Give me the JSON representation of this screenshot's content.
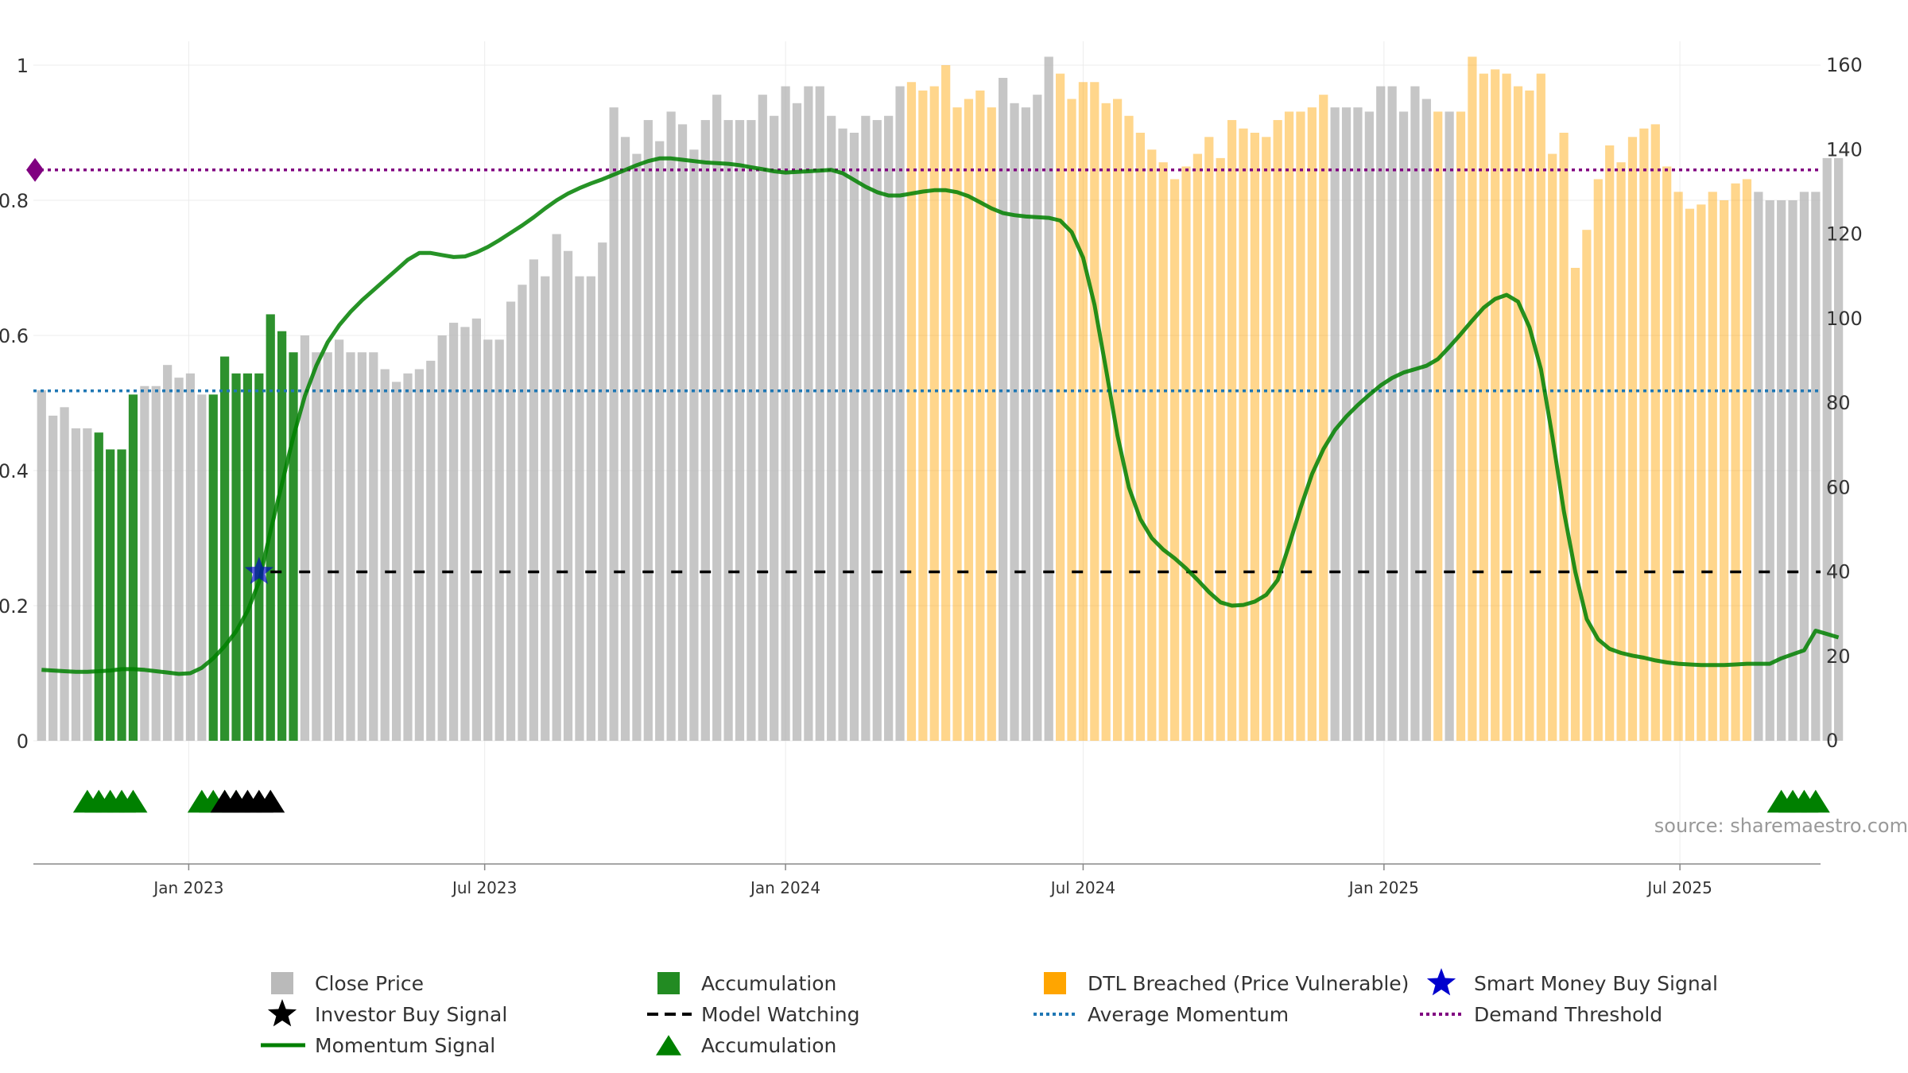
{
  "chart_data": {
    "type": "bar",
    "source_text": "source: sharemaestro.com",
    "left_axis": {
      "ylim": [
        0,
        1
      ],
      "ticks": [
        0,
        0.2,
        0.4,
        0.6,
        0.8,
        1
      ],
      "tick_labels": [
        "0",
        "0.2",
        "0.4",
        "0.6",
        "0.8",
        "1"
      ]
    },
    "right_axis": {
      "ylim": [
        0,
        160
      ],
      "ticks": [
        0,
        20,
        40,
        60,
        80,
        100,
        120,
        140,
        160
      ],
      "tick_labels": [
        "0",
        "20",
        "40",
        "60",
        "80",
        "100",
        "120",
        "140",
        "160"
      ]
    },
    "x_axis": {
      "range": [
        "2022-09-28",
        "2025-09-25"
      ],
      "tick_dates": [
        "2023-01-01",
        "2023-07-01",
        "2024-01-01",
        "2024-07-01",
        "2025-01-01",
        "2025-07-01"
      ],
      "tick_labels": [
        "Jan 2023",
        "Jul 2023",
        "Jan 2024",
        "Jul 2024",
        "Jan 2025",
        "Jul 2025"
      ]
    },
    "grid": true,
    "legend_position": "bottom",
    "colors": {
      "close_price": "#b3b3b3",
      "accumulation": "#228b22",
      "dtl_breached": "#ffa500",
      "momentum": "#008000",
      "model_watching": "#000000",
      "average_momentum": "#1f77b4",
      "demand_threshold": "#800080",
      "smart_money": "#0000cd",
      "investor_buy": "#000000",
      "accumulation_marker": "#008000"
    },
    "bars": {
      "start_date": "2022-10-03",
      "interval_days": 7,
      "values": [
        83,
        77,
        79,
        74,
        74,
        73,
        69,
        69,
        82,
        84,
        84,
        89,
        86,
        87,
        82,
        82,
        91,
        87,
        87,
        87,
        101,
        97,
        92,
        96,
        92,
        92,
        95,
        92,
        92,
        92,
        88,
        85,
        87,
        88,
        90,
        96,
        99,
        98,
        100,
        95,
        95,
        104,
        108,
        114,
        110,
        120,
        116,
        110,
        110,
        118,
        150,
        143,
        139,
        147,
        142,
        149,
        146,
        140,
        147,
        153,
        147,
        147,
        147,
        153,
        148,
        155,
        151,
        155,
        155,
        148,
        145,
        144,
        148,
        147,
        148,
        155,
        156,
        154,
        155,
        160,
        150,
        152,
        154,
        150,
        157,
        151,
        150,
        153,
        162,
        158,
        152,
        156,
        156,
        151,
        152,
        148,
        144,
        140,
        137,
        133,
        136,
        139,
        143,
        138,
        147,
        145,
        144,
        143,
        147,
        149,
        149,
        150,
        153,
        150,
        150,
        150,
        149,
        155,
        155,
        149,
        155,
        152,
        149,
        149,
        149,
        162,
        158,
        159,
        158,
        155,
        154,
        158,
        139,
        144,
        112,
        121,
        133,
        141,
        137,
        143,
        145,
        146,
        136,
        130,
        126,
        127,
        130,
        128,
        132,
        133,
        130,
        128,
        128,
        128,
        130,
        130,
        138,
        138
      ],
      "type_codes": "cccccaaaaccccccaaaaaaaacccccccccccccccccccccccccccccccccccccccccccccccccccccddddddddcccccddddddddddddddddddddddddcccccccccdcddddddddddddddddddddddddddccccccccccccccccccccccccccccccccaaaaacc",
      "categories_legend": {
        "c": "Close Price",
        "a": "Accumulation",
        "d": "DTL Breached (Price Vulnerable)"
      }
    },
    "momentum": {
      "start_date": "2022-10-03",
      "interval_days": 7,
      "values": [
        0.105,
        0.104,
        0.103,
        0.102,
        0.102,
        0.103,
        0.104,
        0.106,
        0.106,
        0.105,
        0.103,
        0.101,
        0.099,
        0.1,
        0.108,
        0.122,
        0.14,
        0.162,
        0.192,
        0.235,
        0.31,
        0.38,
        0.45,
        0.51,
        0.555,
        0.59,
        0.615,
        0.635,
        0.652,
        0.667,
        0.682,
        0.697,
        0.712,
        0.722,
        0.722,
        0.719,
        0.716,
        0.717,
        0.723,
        0.731,
        0.741,
        0.752,
        0.763,
        0.775,
        0.788,
        0.8,
        0.81,
        0.818,
        0.825,
        0.831,
        0.838,
        0.845,
        0.852,
        0.858,
        0.862,
        0.862,
        0.86,
        0.858,
        0.856,
        0.855,
        0.854,
        0.852,
        0.849,
        0.846,
        0.843,
        0.841,
        0.842,
        0.843,
        0.844,
        0.845,
        0.84,
        0.83,
        0.82,
        0.812,
        0.807,
        0.807,
        0.81,
        0.813,
        0.815,
        0.815,
        0.812,
        0.806,
        0.797,
        0.788,
        0.781,
        0.778,
        0.776,
        0.775,
        0.774,
        0.77,
        0.753,
        0.715,
        0.645,
        0.55,
        0.452,
        0.375,
        0.328,
        0.3,
        0.283,
        0.27,
        0.255,
        0.238,
        0.22,
        0.205,
        0.2,
        0.201,
        0.206,
        0.216,
        0.238,
        0.29,
        0.345,
        0.395,
        0.432,
        0.46,
        0.48,
        0.497,
        0.512,
        0.526,
        0.537,
        0.545,
        0.55,
        0.555,
        0.565,
        0.583,
        0.602,
        0.622,
        0.641,
        0.654,
        0.66,
        0.65,
        0.612,
        0.55,
        0.45,
        0.34,
        0.25,
        0.18,
        0.15,
        0.136,
        0.13,
        0.126,
        0.123,
        0.119,
        0.116,
        0.114,
        0.113,
        0.112,
        0.112,
        0.112,
        0.113,
        0.114,
        0.114,
        0.114,
        0.122,
        0.128,
        0.134,
        0.163,
        0.158,
        0.153
      ]
    },
    "lines": {
      "average_momentum": 0.518,
      "demand_threshold": 0.845,
      "model_watching": 0.25,
      "model_watching_start_date": "2023-02-20"
    },
    "smart_money_buy_signal": [
      {
        "date": "2023-02-13",
        "value": 0.25
      }
    ],
    "demand_threshold_marker": {
      "date": "2022-09-29",
      "value": 0.845
    },
    "accumulation_markers": [
      "2022-10-31",
      "2022-11-07",
      "2022-11-14",
      "2022-11-21",
      "2022-11-28",
      "2023-01-09",
      "2023-01-16",
      "2023-01-23",
      "2023-01-30",
      "2025-09-01",
      "2025-09-08",
      "2025-09-15",
      "2025-09-22"
    ],
    "investor_buy_markers": [
      "2023-01-23",
      "2023-01-30",
      "2023-02-06",
      "2023-02-13",
      "2023-02-20"
    ],
    "legend": [
      {
        "label": "Close Price",
        "kind": "square",
        "color": "#b3b3b3"
      },
      {
        "label": "Accumulation",
        "kind": "square",
        "color": "#228b22"
      },
      {
        "label": "DTL Breached (Price Vulnerable)",
        "kind": "square",
        "color": "#ffa500"
      },
      {
        "label": "Smart Money Buy Signal",
        "kind": "star",
        "color": "#0000cd"
      },
      {
        "label": "Investor Buy Signal",
        "kind": "star",
        "color": "#000000"
      },
      {
        "label": "Model Watching",
        "kind": "dash",
        "color": "#000000"
      },
      {
        "label": "Average Momentum",
        "kind": "dot",
        "color": "#1f77b4"
      },
      {
        "label": "Demand Threshold",
        "kind": "dot",
        "color": "#800080"
      },
      {
        "label": "Momentum Signal",
        "kind": "line",
        "color": "#008000"
      },
      {
        "label": "Accumulation",
        "kind": "triangle",
        "color": "#008000"
      }
    ]
  }
}
